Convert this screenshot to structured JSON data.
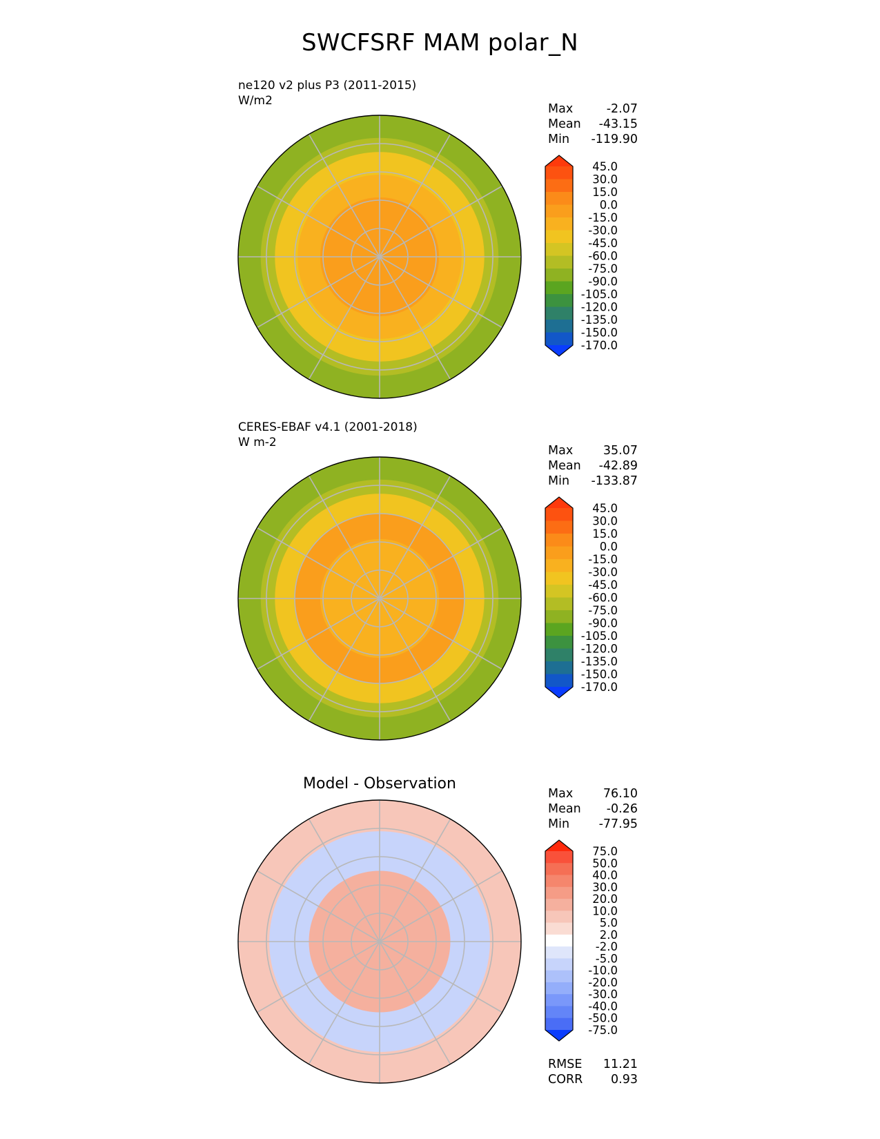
{
  "figure_title": "SWCFSRF MAM polar_N",
  "panels": [
    {
      "title_line1": "ne120 v2 plus P3 (2011-2015)",
      "title_line2": "W/m2",
      "stats": {
        "max_label": "Max",
        "max": "-2.07",
        "mean_label": "Mean",
        "mean": "-43.15",
        "min_label": "Min",
        "min": "-119.90"
      }
    },
    {
      "title_line1": "CERES-EBAF v4.1 (2001-2018)",
      "title_line2": "W m-2",
      "stats": {
        "max_label": "Max",
        "max": "35.07",
        "mean_label": "Mean",
        "mean": "-42.89",
        "min_label": "Min",
        "min": "-133.87"
      }
    },
    {
      "center_title": "Model - Observation",
      "stats": {
        "max_label": "Max",
        "max": "76.10",
        "mean_label": "Mean",
        "mean": "-0.26",
        "min_label": "Min",
        "min": "-77.95"
      }
    }
  ],
  "metrics": {
    "rmse_label": "RMSE",
    "rmse": "11.21",
    "corr_label": "CORR",
    "corr": "0.93"
  },
  "chart_data": [
    {
      "type": "heatmap",
      "projection": "north polar stereographic",
      "colorbar_levels": [
        "45.0",
        "30.0",
        "15.0",
        "0.0",
        "-15.0",
        "-30.0",
        "-45.0",
        "-60.0",
        "-75.0",
        "-90.0",
        "-105.0",
        "-120.0",
        "-135.0",
        "-150.0",
        "-170.0"
      ],
      "colorbar_colors": [
        "#fe3a0c",
        "#fd5210",
        "#fc6d14",
        "#fb8b19",
        "#fa9e1c",
        "#f9b11f",
        "#f1c420",
        "#d4c523",
        "#b3bd24",
        "#8fb222",
        "#5ba520",
        "#3c923f",
        "#2f8168",
        "#1e6f93",
        "#1257c8",
        "#0a3dfd"
      ],
      "zones": [
        {
          "r": 1.0,
          "value_range": [
            -90,
            -75
          ]
        },
        {
          "r": 0.84,
          "value_range": [
            -75,
            -60
          ]
        },
        {
          "r": 0.74,
          "value_range": [
            -45,
            -30
          ]
        },
        {
          "r": 0.58,
          "value_range": [
            -30,
            -15
          ]
        },
        {
          "r": 0.42,
          "value_range": [
            -15,
            0
          ]
        }
      ],
      "stats": {
        "max": -2.07,
        "mean": -43.15,
        "min": -119.9
      }
    },
    {
      "type": "heatmap",
      "projection": "north polar stereographic",
      "colorbar_levels": [
        "45.0",
        "30.0",
        "15.0",
        "0.0",
        "-15.0",
        "-30.0",
        "-45.0",
        "-60.0",
        "-75.0",
        "-90.0",
        "-105.0",
        "-120.0",
        "-135.0",
        "-150.0",
        "-170.0"
      ],
      "colorbar_colors": [
        "#fe3a0c",
        "#fd5210",
        "#fc6d14",
        "#fb8b19",
        "#fa9e1c",
        "#f9b11f",
        "#f1c420",
        "#d4c523",
        "#b3bd24",
        "#8fb222",
        "#5ba520",
        "#3c923f",
        "#2f8168",
        "#1e6f93",
        "#1257c8",
        "#0a3dfd"
      ],
      "zones": [
        {
          "r": 1.0,
          "value_range": [
            -90,
            -75
          ]
        },
        {
          "r": 0.84,
          "value_range": [
            -75,
            -60
          ]
        },
        {
          "r": 0.74,
          "value_range": [
            -45,
            -30
          ]
        },
        {
          "r": 0.6,
          "value_range": [
            -15,
            0
          ]
        },
        {
          "r": 0.42,
          "value_range": [
            -30,
            -15
          ]
        }
      ],
      "stats": {
        "max": 35.07,
        "mean": -42.89,
        "min": -133.87
      }
    },
    {
      "type": "heatmap",
      "projection": "north polar stereographic",
      "title": "Model - Observation",
      "colorbar_levels": [
        "75.0",
        "50.0",
        "40.0",
        "30.0",
        "20.0",
        "10.0",
        "5.0",
        "2.0",
        "-2.0",
        "-5.0",
        "-10.0",
        "-20.0",
        "-30.0",
        "-40.0",
        "-50.0",
        "-75.0"
      ],
      "colorbar_colors": [
        "#ff2a0c",
        "#f9513a",
        "#f56f55",
        "#f5866d",
        "#f59c86",
        "#f5b09e",
        "#f7c6b9",
        "#fadcd3",
        "#ffffff",
        "#dfe6fb",
        "#c7d4fb",
        "#adc1fa",
        "#94aefa",
        "#7a98fa",
        "#6385f8",
        "#4a6df6",
        "#0b3dfd"
      ],
      "zones": [
        {
          "r": 1.0,
          "value_range": [
            2,
            10
          ]
        },
        {
          "r": 0.78,
          "value_range": [
            -10,
            -2
          ]
        },
        {
          "r": 0.5,
          "value_range": [
            10,
            20
          ]
        }
      ],
      "stats": {
        "max": 76.1,
        "mean": -0.26,
        "min": -77.95,
        "rmse": 11.21,
        "corr": 0.93
      }
    }
  ]
}
